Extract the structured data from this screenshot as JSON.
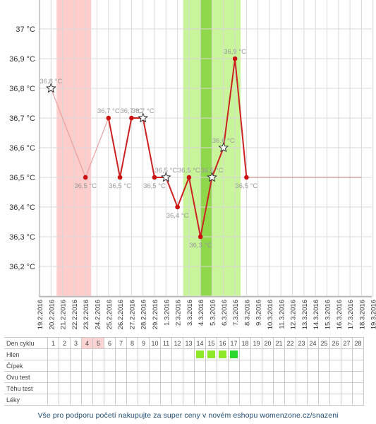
{
  "chart_data": {
    "type": "line",
    "y_unit_suffix": " °C",
    "ylim": [
      36.1,
      37.1
    ],
    "y_ticks": [
      "37 °C",
      "36,9 °C",
      "36,8 °C",
      "36,7 °C",
      "36,6 °C",
      "36,5 °C",
      "36,4 °C",
      "36,3 °C",
      "36,2 °C"
    ],
    "y_tick_values": [
      37.0,
      36.9,
      36.8,
      36.7,
      36.6,
      36.5,
      36.4,
      36.3,
      36.2
    ],
    "categories": [
      "19.2.2016",
      "20.2.2016",
      "21.2.2016",
      "22.2.2016",
      "23.2.2016",
      "24.2.2016",
      "25.2.2016",
      "26.2.2016",
      "27.2.2016",
      "28.2.2016",
      "29.2.2016",
      "1.3.2016",
      "2.3.2016",
      "3.3.2016",
      "4.3.2016",
      "5.3.2016",
      "6.3.2016",
      "7.3.2016",
      "8.3.2016",
      "9.3.2016",
      "10.3.2016",
      "11.3.2016",
      "12.3.2016",
      "13.3.2016",
      "14.3.2016",
      "15.3.2016",
      "16.3.2016",
      "17.3.2016",
      "18.3.2016",
      "19.3.2016"
    ],
    "points": [
      {
        "date": "20.2.2016",
        "value": 36.8,
        "label": "36,8 °C",
        "marker": "star",
        "faded": true
      },
      {
        "date": "23.2.2016",
        "value": 36.5,
        "label": "36,5 °C",
        "marker": "dot",
        "faded": true
      },
      {
        "date": "25.2.2016",
        "value": 36.7,
        "label": "36,7 °C",
        "marker": "dot"
      },
      {
        "date": "26.2.2016",
        "value": 36.5,
        "label": "36,5 °C",
        "marker": "dot"
      },
      {
        "date": "27.2.2016",
        "value": 36.7,
        "label": "36,7 °C",
        "marker": "dot"
      },
      {
        "date": "28.2.2016",
        "value": 36.7,
        "label": "36,7 °C",
        "marker": "star"
      },
      {
        "date": "29.2.2016",
        "value": 36.5,
        "label": "36,5 °C",
        "marker": "dot"
      },
      {
        "date": "1.3.2016",
        "value": 36.5,
        "label": "36,5 °C",
        "marker": "star"
      },
      {
        "date": "2.3.2016",
        "value": 36.4,
        "label": "36,4 °C",
        "marker": "dot"
      },
      {
        "date": "3.3.2016",
        "value": 36.5,
        "label": "36,5 °C",
        "marker": "dot"
      },
      {
        "date": "4.3.2016",
        "value": 36.3,
        "label": "36,3 °C",
        "marker": "dot"
      },
      {
        "date": "5.3.2016",
        "value": 36.5,
        "label": "36,5 °C",
        "marker": "star"
      },
      {
        "date": "6.3.2016",
        "value": 36.6,
        "label": "36,6 °C",
        "marker": "star"
      },
      {
        "date": "7.3.2016",
        "value": 36.9,
        "label": "36,9 °C",
        "marker": "dot"
      },
      {
        "date": "8.3.2016",
        "value": 36.5,
        "label": "36,5 °C",
        "marker": "dot"
      }
    ],
    "flat_line_end": "18.3.2016",
    "shaded_bands": [
      {
        "from": "20.2.2016",
        "to": "22.2.2016",
        "color": "#ffcccc",
        "meaning": "menstruation"
      },
      {
        "from": "2.3.2016",
        "to": "6.3.2016",
        "color": "#c8f59a",
        "meaning": "fertile"
      },
      {
        "from": "4.3.2016",
        "to": "4.3.2016",
        "color": "#8fd84b",
        "meaning": "ovulation"
      }
    ],
    "grid": true,
    "colors": {
      "line": "#cc2222",
      "faded_line": "#e8a0a0",
      "dot": "#cc1111",
      "label": "#999999"
    }
  },
  "table": {
    "rows": [
      "Den cyklu",
      "Hlen",
      "Čípek",
      "Ovu test",
      "Těhu test",
      "Léky"
    ],
    "days": [
      "1",
      "2",
      "3",
      "4",
      "5",
      "6",
      "7",
      "8",
      "9",
      "10",
      "11",
      "12",
      "13",
      "14",
      "15",
      "16",
      "17",
      "18",
      "19",
      "20",
      "21",
      "22",
      "23",
      "24",
      "25",
      "26",
      "27",
      "28"
    ],
    "pink_days": [
      4,
      5
    ],
    "hlen_marks": [
      {
        "day": 14,
        "color": "#8ee82a"
      },
      {
        "day": 15,
        "color": "#8ee82a"
      },
      {
        "day": 16,
        "color": "#8ee82a"
      },
      {
        "day": 17,
        "color": "#2bd82b"
      }
    ]
  },
  "footer": {
    "text": "Vše pro podporu početí nakupujte za super ceny v novém eshopu womenzone.cz/snazeni"
  }
}
